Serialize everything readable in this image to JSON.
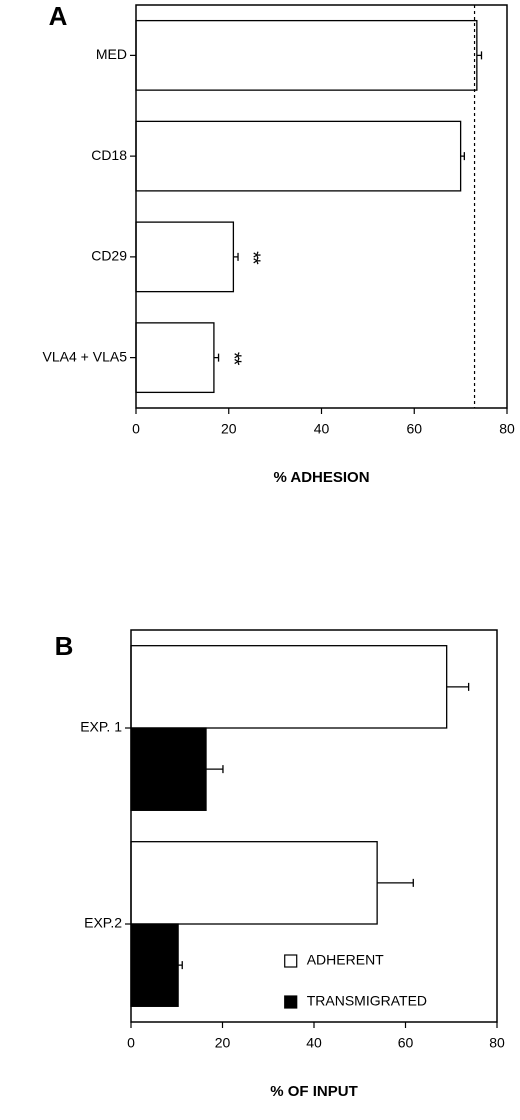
{
  "chart_data": [
    {
      "type": "bar",
      "orientation": "horizontal",
      "panel_label": "A",
      "xlabel": "% ADHESION",
      "categories": [
        "MED",
        "CD18",
        "CD29",
        "VLA4 + VLA5"
      ],
      "series": [
        {
          "color": "#ffffff",
          "values": [
            73.5,
            70,
            21,
            16.8
          ],
          "errors": [
            1,
            0.8,
            1,
            1
          ]
        }
      ],
      "value_annotations": [
        null,
        null,
        "**",
        "**"
      ],
      "reference_line": 73,
      "xlim": [
        0,
        80
      ],
      "xticks": [
        0,
        20,
        40,
        60,
        80
      ]
    },
    {
      "type": "bar",
      "orientation": "horizontal",
      "panel_label": "B",
      "xlabel": "% OF INPUT",
      "categories": [
        "EXP. 1",
        "EXP.2"
      ],
      "series": [
        {
          "name": "ADHERENT",
          "color": "#ffffff",
          "values": [
            69,
            53.8
          ],
          "errors": [
            4.8,
            7.9
          ]
        },
        {
          "name": "TRANSMIGRATED",
          "color": "#000000",
          "values": [
            16.4,
            10.3
          ],
          "errors": [
            3.7,
            0.9
          ]
        }
      ],
      "legend": "lower right",
      "xlim": [
        0,
        80
      ],
      "xticks": [
        0,
        20,
        40,
        60,
        80
      ]
    }
  ]
}
